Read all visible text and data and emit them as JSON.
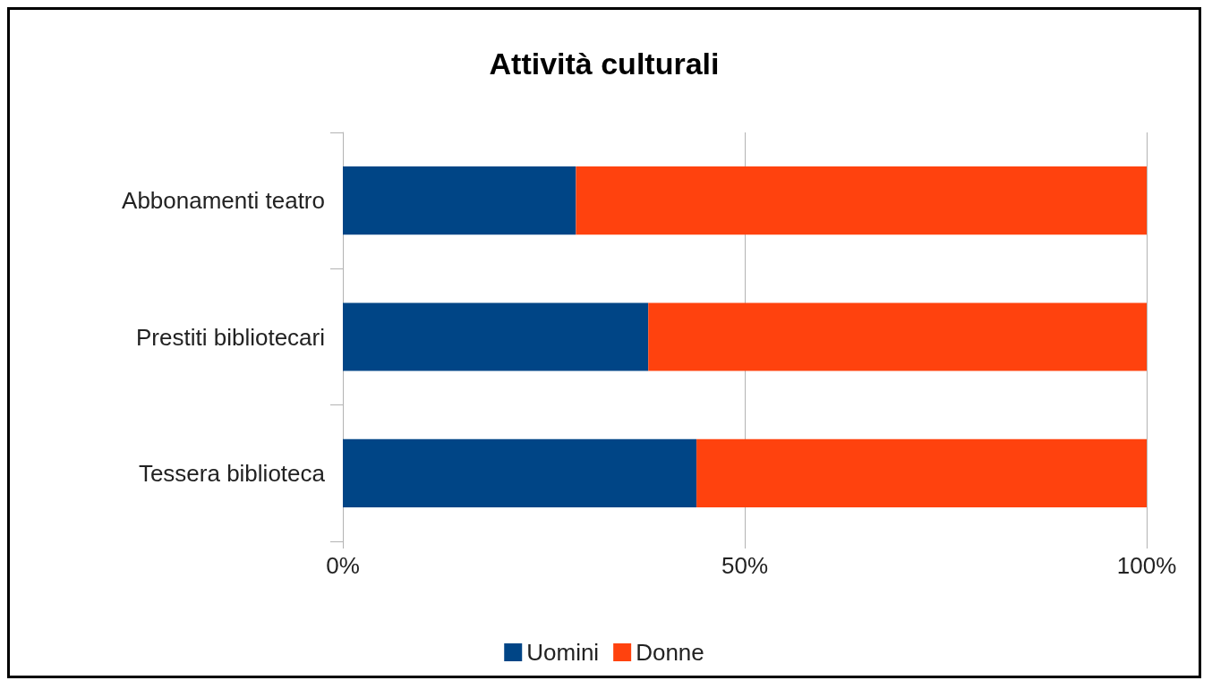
{
  "chart_data": {
    "type": "bar",
    "title": "Attività culturali",
    "orientation": "horizontal",
    "stacked": true,
    "categories": [
      "Abbonamenti teatro",
      "Prestiti bibliotecari",
      "Tessera biblioteca"
    ],
    "series": [
      {
        "name": "Uomini",
        "color": "#004586",
        "values": [
          29,
          38,
          44
        ]
      },
      {
        "name": "Donne",
        "color": "#ff420e",
        "values": [
          71,
          62,
          56
        ]
      }
    ],
    "xlim": [
      0,
      100
    ],
    "xticks": [
      {
        "value": 0,
        "label": "0%"
      },
      {
        "value": 50,
        "label": "50%"
      },
      {
        "value": 100,
        "label": "100%"
      }
    ],
    "grid": "x",
    "legend": "bottom"
  }
}
